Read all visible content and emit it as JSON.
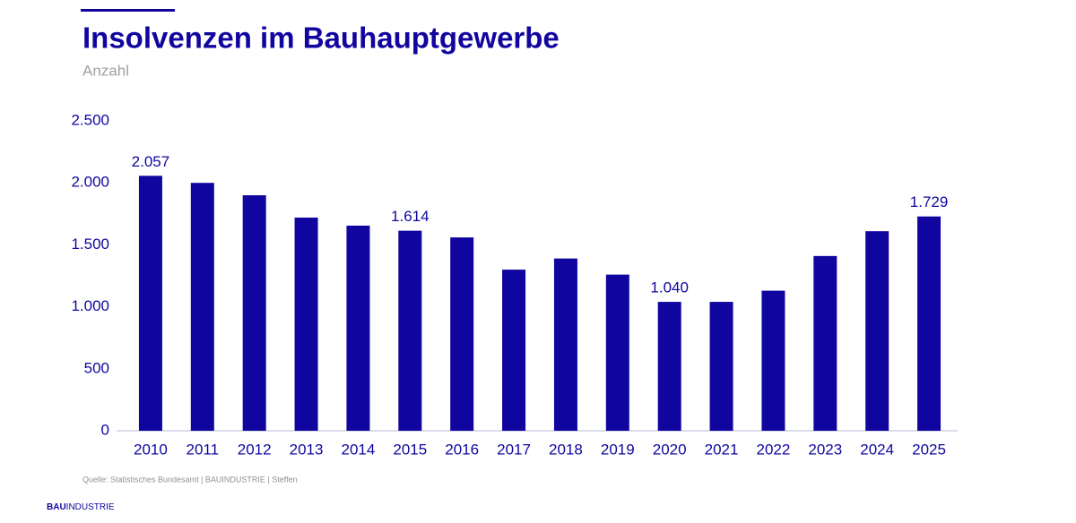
{
  "chart_data": {
    "type": "bar",
    "title": "Insolvenzen im Bauhauptgewerbe",
    "subtitle": "Anzahl",
    "source": "Quelle: Statistisches Bundesamt | BAUINDUSTRIE | Steffen",
    "logo": {
      "bold": "BAU",
      "rest": "INDUSTRIE"
    },
    "categories": [
      "2010",
      "2011",
      "2012",
      "2013",
      "2014",
      "2015",
      "2016",
      "2017",
      "2018",
      "2019",
      "2020",
      "2021",
      "2022",
      "2023",
      "2024",
      "2025"
    ],
    "values": [
      2057,
      2000,
      1900,
      1720,
      1655,
      1614,
      1560,
      1300,
      1390,
      1260,
      1040,
      1040,
      1130,
      1410,
      1610,
      1729
    ],
    "value_labels": [
      "2.057",
      null,
      null,
      null,
      null,
      "1.614",
      null,
      null,
      null,
      null,
      "1.040",
      null,
      null,
      null,
      null,
      "1.729"
    ],
    "color": "#10069f",
    "ylim": [
      0,
      2500
    ],
    "yticks": [
      0,
      500,
      {
        "value": 1000,
        "label": "1.000"
      },
      {
        "value": 1500,
        "label": "1.500"
      },
      {
        "value": 2000,
        "label": "2.000"
      },
      {
        "value": 2500,
        "label": "2.500"
      }
    ],
    "grid": false
  }
}
